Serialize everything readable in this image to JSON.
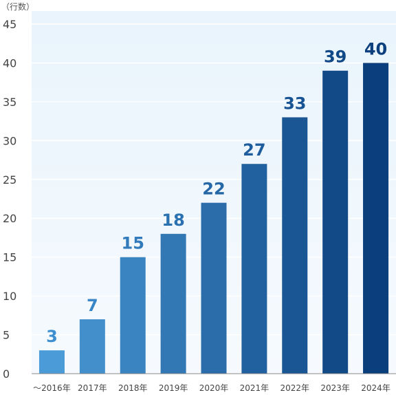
{
  "chart_data": {
    "type": "bar",
    "unit_label": "（行数）",
    "categories": [
      "～2016年",
      "2017年",
      "2018年",
      "2019年",
      "2020年",
      "2021年",
      "2022年",
      "2023年",
      "2024年"
    ],
    "values": [
      3,
      7,
      15,
      18,
      22,
      27,
      33,
      39,
      40
    ],
    "data_labels": [
      "3",
      "7",
      "15",
      "18",
      "22",
      "27",
      "33",
      "39",
      "40"
    ],
    "y_ticks": [
      "0",
      "5",
      "10",
      "15",
      "20",
      "25",
      "30",
      "35",
      "40",
      "45"
    ],
    "ylim": [
      0,
      45
    ],
    "grid": true,
    "legend": "none",
    "colors": {
      "bar_start": "#4A9BD7",
      "bar_end": "#0A3E7D",
      "label_start": "#3D8FD0",
      "label_end": "#0B3F7E",
      "plot_bg_top": "#E9F4FC",
      "plot_bg_bottom": "#F6FAFE"
    }
  }
}
